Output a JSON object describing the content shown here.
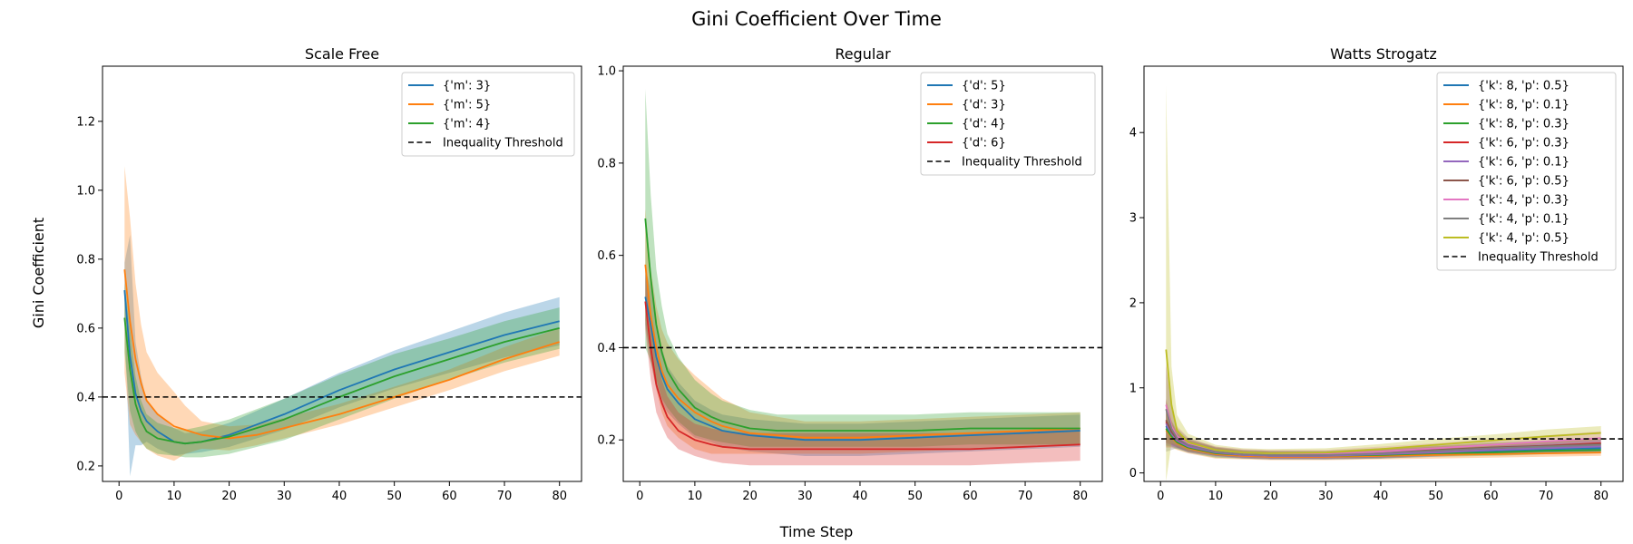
{
  "figure": {
    "suptitle": "Gini Coefficient Over Time",
    "ylabel": "Gini Coefficient",
    "xlabel": "Time Step"
  },
  "colors": {
    "tab_blue": "#1f77b4",
    "tab_orange": "#ff7f0e",
    "tab_green": "#2ca02c",
    "tab_red": "#d62728",
    "tab_purple": "#9467bd",
    "tab_brown": "#8c564b",
    "tab_pink": "#e377c2",
    "tab_gray": "#7f7f7f",
    "tab_olive": "#bcbd22",
    "threshold": "#000000"
  },
  "chart_data": [
    {
      "type": "line",
      "title": "Scale Free",
      "xlim": [
        -3,
        84
      ],
      "ylim": [
        0.155,
        1.36
      ],
      "xticks": [
        0,
        10,
        20,
        30,
        40,
        50,
        60,
        70,
        80
      ],
      "yticks": [
        0.2,
        0.4,
        0.6,
        0.8,
        1.0,
        1.2
      ],
      "ytick_labels": [
        "0.2",
        "0.4",
        "0.6",
        "0.8",
        "1.0",
        "1.2"
      ],
      "threshold": 0.4,
      "threshold_label": "Inequality Threshold",
      "legend_position": "upper right",
      "series": [
        {
          "name": "{'m': 3}",
          "color": "#1f77b4",
          "x": [
            1,
            2,
            3,
            4,
            5,
            7,
            10,
            12,
            15,
            20,
            25,
            30,
            40,
            50,
            60,
            70,
            80
          ],
          "y": [
            0.71,
            0.52,
            0.41,
            0.36,
            0.33,
            0.3,
            0.27,
            0.265,
            0.27,
            0.29,
            0.32,
            0.35,
            0.42,
            0.48,
            0.53,
            0.58,
            0.62
          ],
          "band": [
            0.08,
            0.35,
            0.15,
            0.1,
            0.06,
            0.05,
            0.04,
            0.03,
            0.03,
            0.035,
            0.04,
            0.045,
            0.05,
            0.055,
            0.06,
            0.065,
            0.07
          ]
        },
        {
          "name": "{'m': 5}",
          "color": "#ff7f0e",
          "x": [
            1,
            2,
            3,
            4,
            5,
            7,
            10,
            12,
            15,
            20,
            25,
            30,
            40,
            50,
            60,
            70,
            80
          ],
          "y": [
            0.77,
            0.62,
            0.51,
            0.44,
            0.39,
            0.35,
            0.315,
            0.305,
            0.29,
            0.28,
            0.29,
            0.31,
            0.35,
            0.4,
            0.45,
            0.51,
            0.56
          ],
          "band": [
            0.3,
            0.3,
            0.22,
            0.17,
            0.14,
            0.12,
            0.1,
            0.07,
            0.04,
            0.035,
            0.03,
            0.03,
            0.03,
            0.03,
            0.03,
            0.035,
            0.04
          ]
        },
        {
          "name": "{'m': 4}",
          "color": "#2ca02c",
          "x": [
            1,
            2,
            3,
            4,
            5,
            7,
            10,
            12,
            15,
            20,
            25,
            30,
            40,
            50,
            60,
            70,
            80
          ],
          "y": [
            0.63,
            0.48,
            0.38,
            0.33,
            0.3,
            0.28,
            0.27,
            0.265,
            0.27,
            0.285,
            0.31,
            0.335,
            0.4,
            0.46,
            0.51,
            0.56,
            0.6
          ],
          "band": [
            0.1,
            0.12,
            0.08,
            0.06,
            0.05,
            0.045,
            0.04,
            0.04,
            0.045,
            0.05,
            0.055,
            0.06,
            0.065,
            0.065,
            0.06,
            0.06,
            0.06
          ]
        }
      ]
    },
    {
      "type": "line",
      "title": "Regular",
      "xlim": [
        -3,
        84
      ],
      "ylim": [
        0.11,
        1.01
      ],
      "xticks": [
        0,
        10,
        20,
        30,
        40,
        50,
        60,
        70,
        80
      ],
      "yticks": [
        0.2,
        0.4,
        0.6,
        0.8,
        1.0
      ],
      "ytick_labels": [
        "0.2",
        "0.4",
        "0.6",
        "0.8",
        "1.0"
      ],
      "threshold": 0.4,
      "threshold_label": "Inequality Threshold",
      "legend_position": "upper right",
      "series": [
        {
          "name": "{'d': 5}",
          "color": "#1f77b4",
          "x": [
            1,
            2,
            3,
            4,
            5,
            7,
            10,
            13,
            15,
            20,
            25,
            30,
            40,
            50,
            60,
            70,
            80
          ],
          "y": [
            0.51,
            0.45,
            0.38,
            0.34,
            0.31,
            0.28,
            0.245,
            0.23,
            0.22,
            0.21,
            0.205,
            0.2,
            0.2,
            0.205,
            0.21,
            0.215,
            0.22
          ],
          "band": [
            0.06,
            0.08,
            0.07,
            0.06,
            0.05,
            0.045,
            0.04,
            0.035,
            0.035,
            0.035,
            0.035,
            0.035,
            0.035,
            0.035,
            0.035,
            0.035,
            0.035
          ]
        },
        {
          "name": "{'d': 3}",
          "color": "#ff7f0e",
          "x": [
            1,
            2,
            3,
            4,
            5,
            7,
            10,
            13,
            15,
            20,
            25,
            30,
            40,
            50,
            60,
            70,
            80
          ],
          "y": [
            0.58,
            0.47,
            0.4,
            0.35,
            0.32,
            0.29,
            0.26,
            0.24,
            0.23,
            0.215,
            0.21,
            0.205,
            0.205,
            0.21,
            0.215,
            0.22,
            0.225
          ],
          "band": [
            0.12,
            0.1,
            0.09,
            0.09,
            0.09,
            0.085,
            0.08,
            0.07,
            0.06,
            0.045,
            0.04,
            0.035,
            0.035,
            0.035,
            0.035,
            0.035,
            0.035
          ]
        },
        {
          "name": "{'d': 4}",
          "color": "#2ca02c",
          "x": [
            1,
            2,
            3,
            4,
            5,
            7,
            10,
            13,
            15,
            20,
            25,
            30,
            40,
            50,
            60,
            70,
            80
          ],
          "y": [
            0.68,
            0.55,
            0.45,
            0.39,
            0.35,
            0.31,
            0.27,
            0.25,
            0.24,
            0.225,
            0.22,
            0.22,
            0.22,
            0.22,
            0.225,
            0.225,
            0.225
          ],
          "band": [
            0.28,
            0.18,
            0.12,
            0.1,
            0.08,
            0.07,
            0.06,
            0.05,
            0.045,
            0.04,
            0.035,
            0.035,
            0.035,
            0.035,
            0.035,
            0.035,
            0.035
          ]
        },
        {
          "name": "{'d': 6}",
          "color": "#d62728",
          "x": [
            1,
            2,
            3,
            4,
            5,
            7,
            10,
            13,
            15,
            20,
            25,
            30,
            40,
            50,
            60,
            70,
            80
          ],
          "y": [
            0.5,
            0.4,
            0.32,
            0.28,
            0.25,
            0.22,
            0.2,
            0.19,
            0.185,
            0.18,
            0.18,
            0.18,
            0.18,
            0.18,
            0.18,
            0.185,
            0.19
          ],
          "band": [
            0.06,
            0.07,
            0.06,
            0.05,
            0.045,
            0.04,
            0.035,
            0.035,
            0.035,
            0.035,
            0.035,
            0.035,
            0.035,
            0.035,
            0.035,
            0.035,
            0.035
          ]
        }
      ]
    },
    {
      "type": "line",
      "title": "Watts Strogatz",
      "xlim": [
        -3,
        84
      ],
      "ylim": [
        -0.1,
        4.78
      ],
      "xticks": [
        0,
        10,
        20,
        30,
        40,
        50,
        60,
        70,
        80
      ],
      "yticks": [
        0,
        1,
        2,
        3,
        4
      ],
      "ytick_labels": [
        "0",
        "1",
        "2",
        "3",
        "4"
      ],
      "threshold": 0.4,
      "threshold_label": "Inequality Threshold",
      "legend_position": "upper right",
      "series": [
        {
          "name": "{'k': 8, 'p': 0.5}",
          "color": "#1f77b4",
          "x": [
            1,
            2,
            3,
            5,
            10,
            15,
            20,
            30,
            40,
            50,
            60,
            70,
            80
          ],
          "y": [
            0.55,
            0.45,
            0.38,
            0.32,
            0.25,
            0.22,
            0.21,
            0.21,
            0.22,
            0.24,
            0.26,
            0.28,
            0.29
          ],
          "band": [
            0.2,
            0.12,
            0.08,
            0.06,
            0.05,
            0.04,
            0.04,
            0.04,
            0.04,
            0.04,
            0.04,
            0.04,
            0.04
          ]
        },
        {
          "name": "{'k': 8, 'p': 0.1}",
          "color": "#ff7f0e",
          "x": [
            1,
            2,
            3,
            5,
            10,
            15,
            20,
            30,
            40,
            50,
            60,
            70,
            80
          ],
          "y": [
            0.5,
            0.42,
            0.35,
            0.29,
            0.22,
            0.2,
            0.19,
            0.19,
            0.2,
            0.21,
            0.22,
            0.23,
            0.24
          ],
          "band": [
            0.2,
            0.12,
            0.08,
            0.06,
            0.05,
            0.04,
            0.04,
            0.04,
            0.04,
            0.04,
            0.04,
            0.04,
            0.04
          ]
        },
        {
          "name": "{'k': 8, 'p': 0.3}",
          "color": "#2ca02c",
          "x": [
            1,
            2,
            3,
            5,
            10,
            15,
            20,
            30,
            40,
            50,
            60,
            70,
            80
          ],
          "y": [
            0.52,
            0.43,
            0.36,
            0.3,
            0.23,
            0.21,
            0.2,
            0.2,
            0.21,
            0.23,
            0.24,
            0.26,
            0.27
          ],
          "band": [
            0.2,
            0.12,
            0.08,
            0.06,
            0.05,
            0.04,
            0.04,
            0.04,
            0.04,
            0.04,
            0.04,
            0.04,
            0.04
          ]
        },
        {
          "name": "{'k': 6, 'p': 0.3}",
          "color": "#d62728",
          "x": [
            1,
            2,
            3,
            5,
            10,
            15,
            20,
            30,
            40,
            50,
            60,
            70,
            80
          ],
          "y": [
            0.6,
            0.47,
            0.39,
            0.32,
            0.25,
            0.22,
            0.21,
            0.21,
            0.23,
            0.26,
            0.29,
            0.32,
            0.35
          ],
          "band": [
            0.25,
            0.14,
            0.09,
            0.07,
            0.05,
            0.04,
            0.04,
            0.04,
            0.05,
            0.05,
            0.05,
            0.05,
            0.05
          ]
        },
        {
          "name": "{'k': 6, 'p': 0.1}",
          "color": "#9467bd",
          "x": [
            1,
            2,
            3,
            5,
            10,
            15,
            20,
            30,
            40,
            50,
            60,
            70,
            80
          ],
          "y": [
            0.58,
            0.46,
            0.38,
            0.31,
            0.24,
            0.21,
            0.2,
            0.2,
            0.22,
            0.24,
            0.27,
            0.29,
            0.31
          ],
          "band": [
            0.25,
            0.14,
            0.09,
            0.07,
            0.05,
            0.04,
            0.04,
            0.04,
            0.05,
            0.05,
            0.05,
            0.05,
            0.05
          ]
        },
        {
          "name": "{'k': 6, 'p': 0.5}",
          "color": "#8c564b",
          "x": [
            1,
            2,
            3,
            5,
            10,
            15,
            20,
            30,
            40,
            50,
            60,
            70,
            80
          ],
          "y": [
            0.62,
            0.48,
            0.4,
            0.33,
            0.26,
            0.23,
            0.22,
            0.22,
            0.24,
            0.27,
            0.3,
            0.32,
            0.34
          ],
          "band": [
            0.25,
            0.14,
            0.09,
            0.07,
            0.05,
            0.04,
            0.04,
            0.04,
            0.05,
            0.05,
            0.05,
            0.05,
            0.05
          ]
        },
        {
          "name": "{'k': 4, 'p': 0.3}",
          "color": "#e377c2",
          "x": [
            1,
            2,
            3,
            5,
            10,
            15,
            20,
            30,
            40,
            50,
            60,
            70,
            80
          ],
          "y": [
            0.8,
            0.55,
            0.43,
            0.34,
            0.26,
            0.23,
            0.22,
            0.22,
            0.25,
            0.29,
            0.33,
            0.37,
            0.41
          ],
          "band": [
            0.5,
            0.25,
            0.12,
            0.08,
            0.05,
            0.05,
            0.05,
            0.05,
            0.06,
            0.06,
            0.07,
            0.07,
            0.08
          ]
        },
        {
          "name": "{'k': 4, 'p': 0.1}",
          "color": "#7f7f7f",
          "x": [
            1,
            2,
            3,
            5,
            10,
            15,
            20,
            30,
            40,
            50,
            60,
            70,
            80
          ],
          "y": [
            0.75,
            0.52,
            0.41,
            0.33,
            0.25,
            0.22,
            0.21,
            0.21,
            0.23,
            0.26,
            0.29,
            0.31,
            0.33
          ],
          "band": [
            0.5,
            0.25,
            0.12,
            0.08,
            0.05,
            0.05,
            0.05,
            0.05,
            0.06,
            0.06,
            0.07,
            0.07,
            0.08
          ]
        },
        {
          "name": "{'k': 4, 'p': 0.5}",
          "color": "#bcbd22",
          "x": [
            1,
            2,
            3,
            5,
            10,
            15,
            20,
            30,
            40,
            50,
            60,
            70,
            80
          ],
          "y": [
            1.45,
            0.8,
            0.5,
            0.36,
            0.27,
            0.24,
            0.23,
            0.24,
            0.28,
            0.33,
            0.38,
            0.43,
            0.47
          ],
          "band": [
            3.1,
            0.45,
            0.18,
            0.1,
            0.06,
            0.05,
            0.05,
            0.05,
            0.06,
            0.07,
            0.07,
            0.08,
            0.08
          ]
        }
      ]
    }
  ]
}
